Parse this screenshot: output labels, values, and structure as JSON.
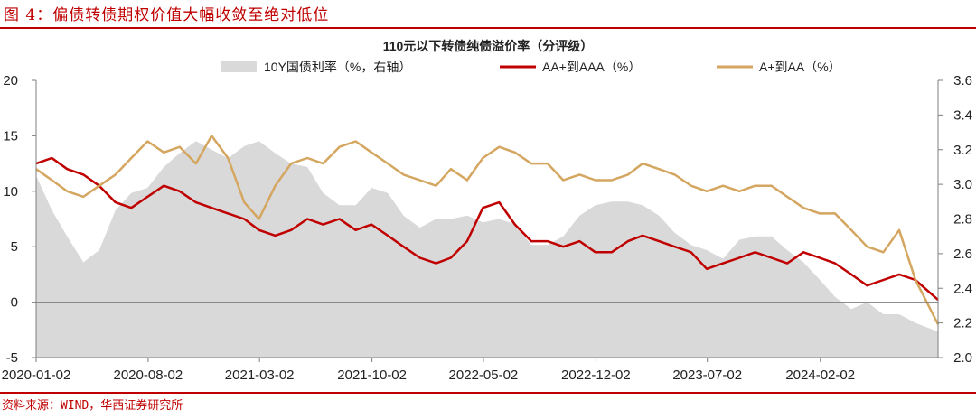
{
  "figure": {
    "title": "图 4：偏债转债期权价值大幅收敛至绝对低位",
    "source": "资料来源：WIND，华西证券研究所"
  },
  "chart_data": {
    "type": "area+line",
    "title": "110元以下转债纯债溢价率（分评级）",
    "legend_position": "top",
    "x_start": "2020-01-02",
    "x_end": "2024-09-13",
    "x_ticks": [
      "2020-01-02",
      "2020-08-02",
      "2021-03-02",
      "2021-10-02",
      "2022-05-02",
      "2022-12-02",
      "2023-07-02",
      "2024-02-02"
    ],
    "y_left": {
      "label": "",
      "range": [
        -5,
        20
      ],
      "ticks": [
        "-5",
        "0",
        "5",
        "10",
        "15",
        "20"
      ]
    },
    "y_right": {
      "label": "",
      "range": [
        2.0,
        3.6
      ],
      "ticks": [
        "2.0",
        "2.2",
        "2.4",
        "2.6",
        "2.8",
        "3.0",
        "3.2",
        "3.4",
        "3.6"
      ]
    },
    "grid": false,
    "colors": {
      "area": "#d9d9d9",
      "aa": "#c00000",
      "a": "#d4a660",
      "axis": "#7f7f7f"
    },
    "series": [
      {
        "name": "10Y国债利率（%，右轴）",
        "axis": "right",
        "style": "area",
        "x": [
          "2020-01-02",
          "2020-02-01",
          "2020-03-01",
          "2020-04-01",
          "2020-05-01",
          "2020-06-01",
          "2020-07-01",
          "2020-08-01",
          "2020-09-01",
          "2020-10-01",
          "2020-11-01",
          "2020-12-01",
          "2021-01-01",
          "2021-02-01",
          "2021-03-01",
          "2021-04-01",
          "2021-05-01",
          "2021-06-01",
          "2021-07-01",
          "2021-08-01",
          "2021-09-01",
          "2021-10-01",
          "2021-11-01",
          "2021-12-01",
          "2022-01-01",
          "2022-02-01",
          "2022-03-01",
          "2022-04-01",
          "2022-05-01",
          "2022-06-01",
          "2022-07-01",
          "2022-08-01",
          "2022-09-01",
          "2022-10-01",
          "2022-11-01",
          "2022-12-01",
          "2023-01-01",
          "2023-02-01",
          "2023-03-01",
          "2023-04-01",
          "2023-05-01",
          "2023-06-01",
          "2023-07-01",
          "2023-08-01",
          "2023-09-01",
          "2023-10-01",
          "2023-11-01",
          "2023-12-01",
          "2024-01-01",
          "2024-02-01",
          "2024-03-01",
          "2024-04-01",
          "2024-05-01",
          "2024-06-01",
          "2024-07-01",
          "2024-08-01",
          "2024-09-13"
        ],
        "values": [
          3.05,
          2.85,
          2.7,
          2.55,
          2.62,
          2.85,
          2.95,
          2.98,
          3.1,
          3.18,
          3.25,
          3.2,
          3.15,
          3.22,
          3.25,
          3.18,
          3.12,
          3.1,
          2.95,
          2.88,
          2.88,
          2.98,
          2.95,
          2.82,
          2.75,
          2.8,
          2.8,
          2.82,
          2.78,
          2.8,
          2.77,
          2.65,
          2.65,
          2.7,
          2.82,
          2.88,
          2.9,
          2.9,
          2.88,
          2.82,
          2.72,
          2.65,
          2.62,
          2.57,
          2.68,
          2.7,
          2.7,
          2.62,
          2.55,
          2.45,
          2.35,
          2.28,
          2.32,
          2.25,
          2.25,
          2.2,
          2.15
        ]
      },
      {
        "name": "AA+到AAA（%）",
        "axis": "left",
        "style": "line",
        "x": [
          "2020-01-02",
          "2020-02-01",
          "2020-03-01",
          "2020-04-01",
          "2020-05-01",
          "2020-06-01",
          "2020-07-01",
          "2020-08-01",
          "2020-09-01",
          "2020-10-01",
          "2020-11-01",
          "2020-12-01",
          "2021-01-01",
          "2021-02-01",
          "2021-03-01",
          "2021-04-01",
          "2021-05-01",
          "2021-06-01",
          "2021-07-01",
          "2021-08-01",
          "2021-09-01",
          "2021-10-01",
          "2021-11-01",
          "2021-12-01",
          "2022-01-01",
          "2022-02-01",
          "2022-03-01",
          "2022-04-01",
          "2022-05-01",
          "2022-06-01",
          "2022-07-01",
          "2022-08-01",
          "2022-09-01",
          "2022-10-01",
          "2022-11-01",
          "2022-12-01",
          "2023-01-01",
          "2023-02-01",
          "2023-03-01",
          "2023-04-01",
          "2023-05-01",
          "2023-06-01",
          "2023-07-01",
          "2023-08-01",
          "2023-09-01",
          "2023-10-01",
          "2023-11-01",
          "2023-12-01",
          "2024-01-01",
          "2024-02-01",
          "2024-03-01",
          "2024-04-01",
          "2024-05-01",
          "2024-06-01",
          "2024-07-01",
          "2024-08-01",
          "2024-09-13"
        ],
        "values": [
          12.5,
          13.0,
          12.0,
          11.5,
          10.5,
          9.0,
          8.5,
          9.5,
          10.5,
          10.0,
          9.0,
          8.5,
          8.0,
          7.5,
          6.5,
          6.0,
          6.5,
          7.5,
          7.0,
          7.5,
          6.5,
          7.0,
          6.0,
          5.0,
          4.0,
          3.5,
          4.0,
          5.5,
          8.5,
          9.0,
          7.0,
          5.5,
          5.5,
          5.0,
          5.5,
          4.5,
          4.5,
          5.5,
          6.0,
          5.5,
          5.0,
          4.5,
          3.0,
          3.5,
          4.0,
          4.5,
          4.0,
          3.5,
          4.5,
          4.0,
          3.5,
          2.5,
          1.5,
          2.0,
          2.5,
          2.0,
          0.2
        ]
      },
      {
        "name": "A+到AA（%）",
        "axis": "left",
        "style": "line",
        "x": [
          "2020-01-02",
          "2020-02-01",
          "2020-03-01",
          "2020-04-01",
          "2020-05-01",
          "2020-06-01",
          "2020-07-01",
          "2020-08-01",
          "2020-09-01",
          "2020-10-01",
          "2020-11-01",
          "2020-12-01",
          "2021-01-01",
          "2021-02-01",
          "2021-03-01",
          "2021-04-01",
          "2021-05-01",
          "2021-06-01",
          "2021-07-01",
          "2021-08-01",
          "2021-09-01",
          "2021-10-01",
          "2021-11-01",
          "2021-12-01",
          "2022-01-01",
          "2022-02-01",
          "2022-03-01",
          "2022-04-01",
          "2022-05-01",
          "2022-06-01",
          "2022-07-01",
          "2022-08-01",
          "2022-09-01",
          "2022-10-01",
          "2022-11-01",
          "2022-12-01",
          "2023-01-01",
          "2023-02-01",
          "2023-03-01",
          "2023-04-01",
          "2023-05-01",
          "2023-06-01",
          "2023-07-01",
          "2023-08-01",
          "2023-09-01",
          "2023-10-01",
          "2023-11-01",
          "2023-12-01",
          "2024-01-01",
          "2024-02-01",
          "2024-03-01",
          "2024-04-01",
          "2024-05-01",
          "2024-06-01",
          "2024-07-01",
          "2024-08-01",
          "2024-09-13"
        ],
        "values": [
          12.0,
          11.0,
          10.0,
          9.5,
          10.5,
          11.5,
          13.0,
          14.5,
          13.5,
          14.0,
          12.5,
          15.0,
          13.0,
          9.0,
          7.5,
          10.5,
          12.5,
          13.0,
          12.5,
          14.0,
          14.5,
          13.5,
          12.5,
          11.5,
          11.0,
          10.5,
          12.0,
          11.0,
          13.0,
          14.0,
          13.5,
          12.5,
          12.5,
          11.0,
          11.5,
          11.0,
          11.0,
          11.5,
          12.5,
          12.0,
          11.5,
          10.5,
          10.0,
          10.5,
          10.0,
          10.5,
          10.5,
          9.5,
          8.5,
          8.0,
          8.0,
          6.5,
          5.0,
          4.5,
          6.5,
          2.0,
          -2.0
        ]
      }
    ]
  }
}
